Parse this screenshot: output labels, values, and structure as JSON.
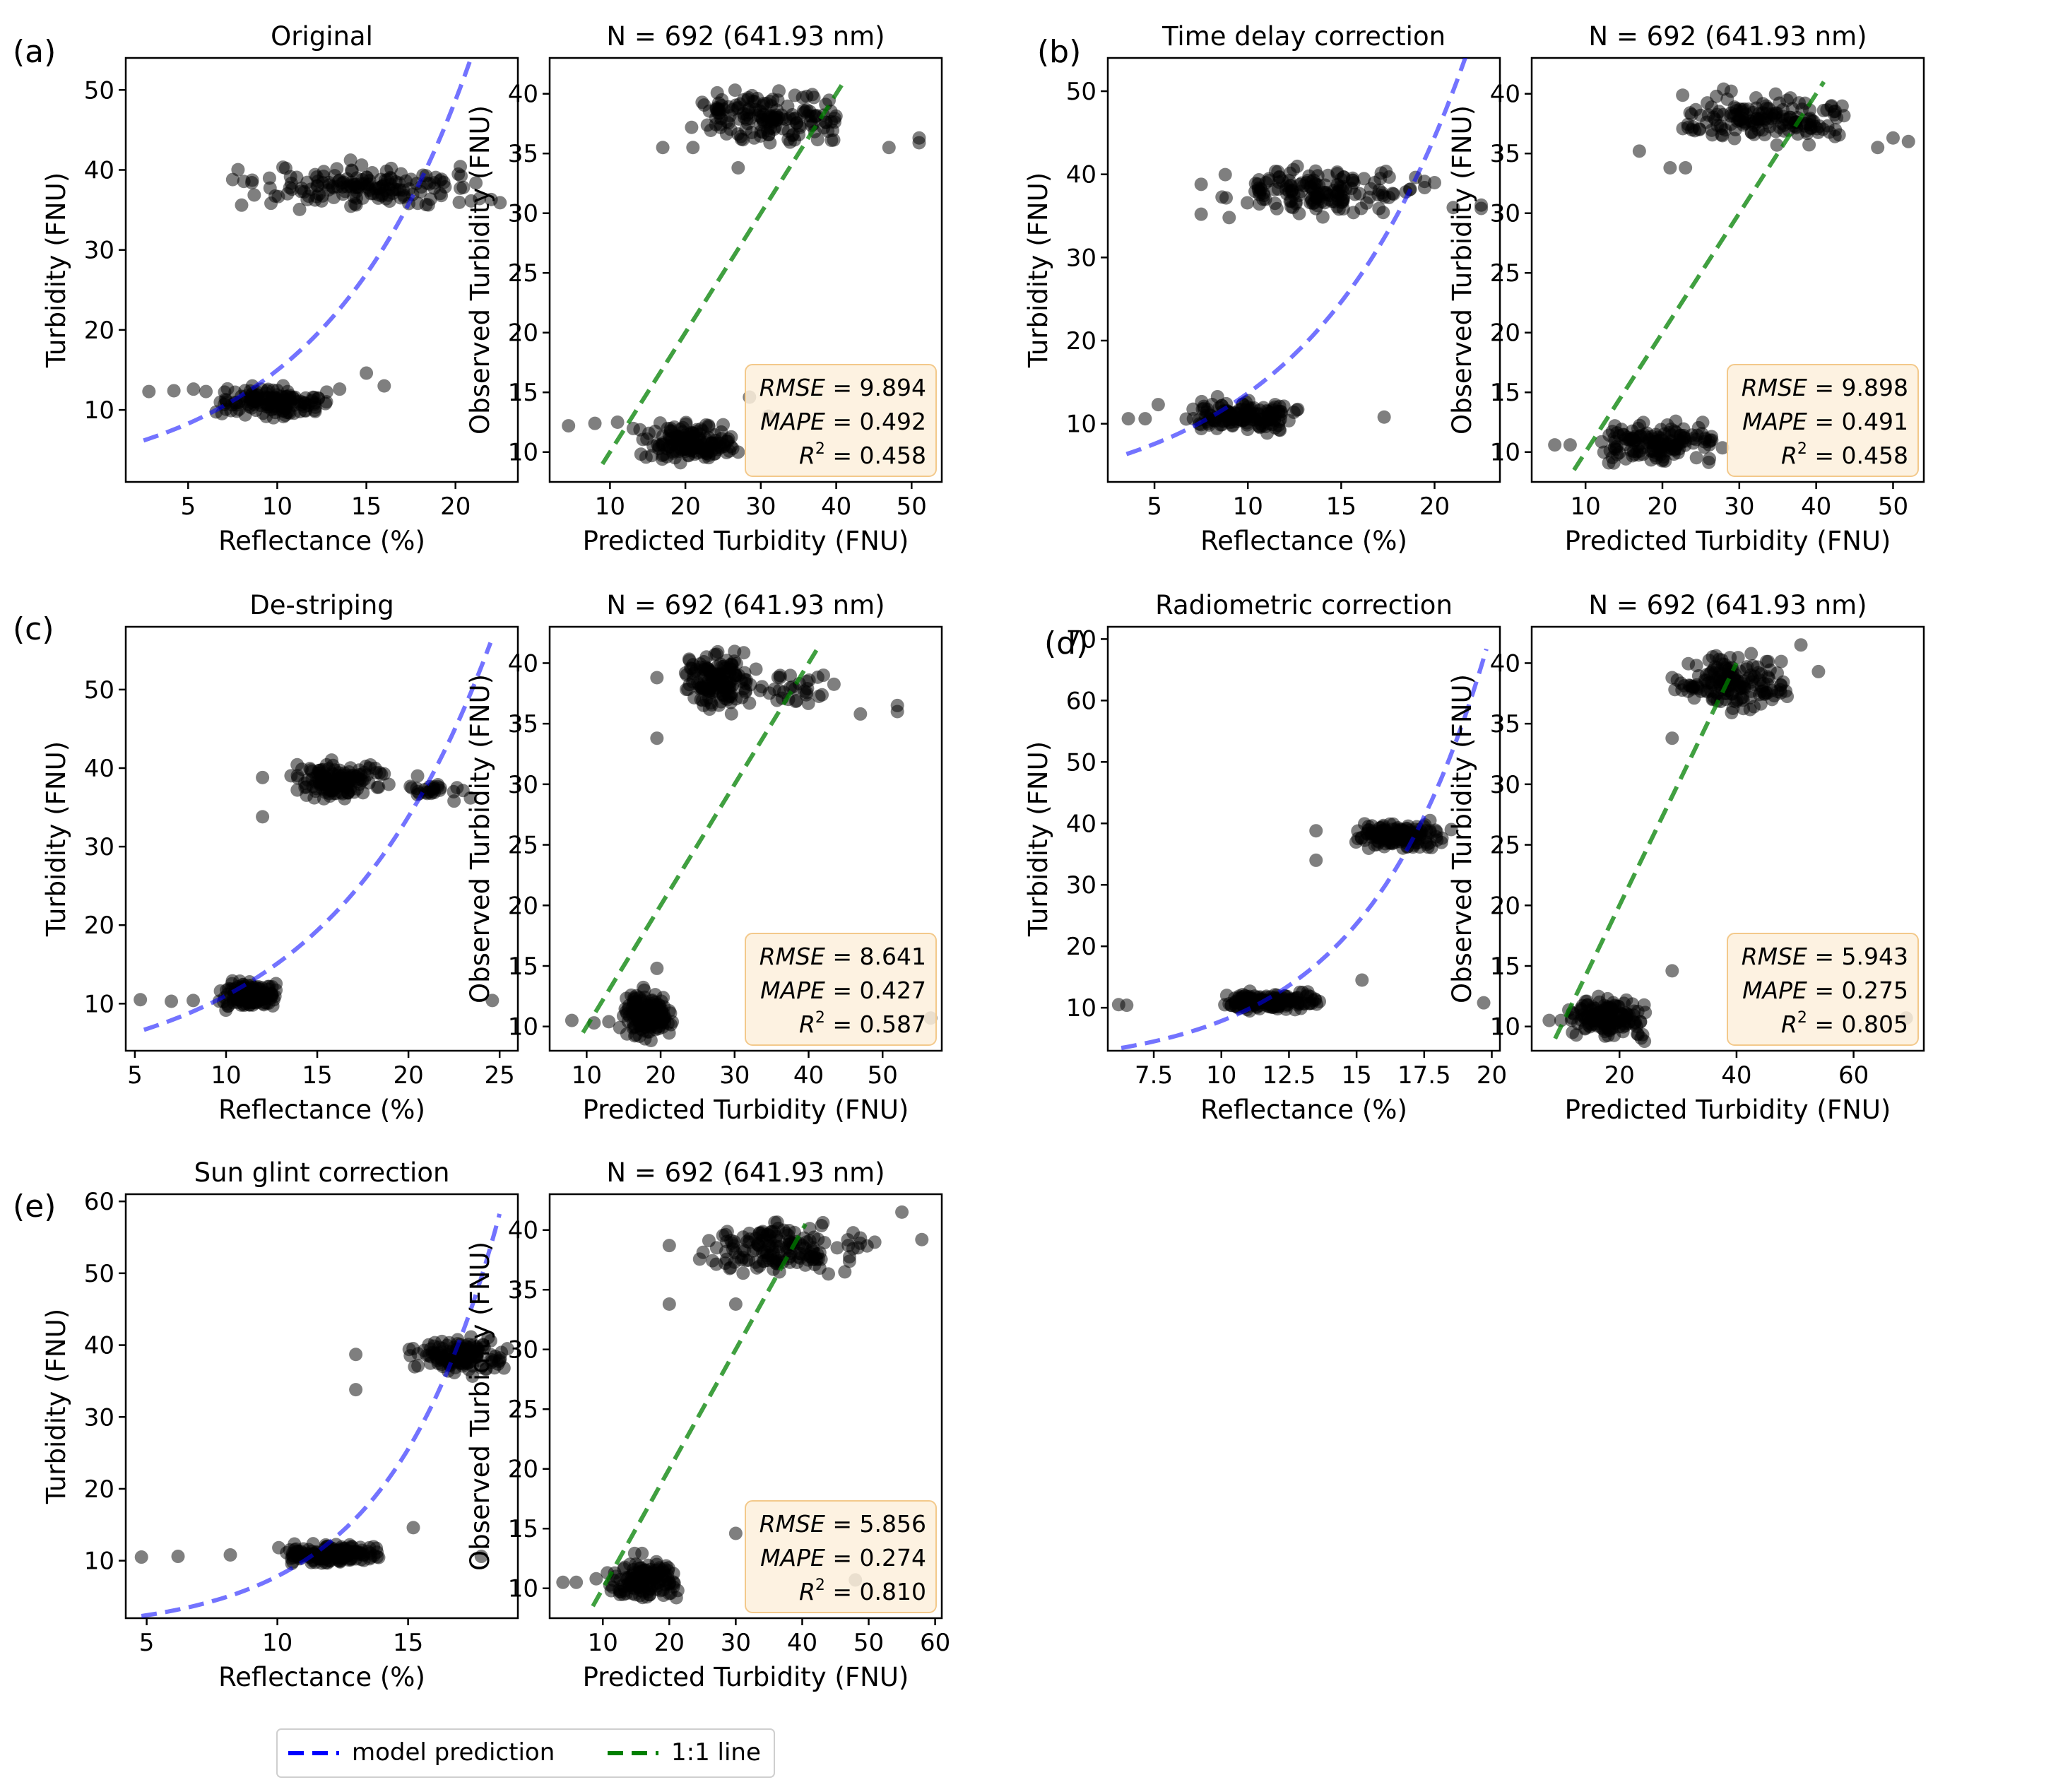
{
  "legend": {
    "model_label": "model prediction",
    "model_color": "#0000ff",
    "one_to_one_label": "1:1 line",
    "one_to_one_color": "#008000"
  },
  "chart_data": [
    {
      "panel": "(a)",
      "kind": "reflectance",
      "type": "scatter",
      "title": "Original",
      "xlabel": "Reflectance (%)",
      "ylabel": "Turbidity (FNU)",
      "xlim": [
        1.5,
        23.5
      ],
      "ylim": [
        1,
        54
      ],
      "xticks": [
        5,
        10,
        15,
        20
      ],
      "yticks": [
        10,
        20,
        30,
        40,
        50
      ],
      "curve": {
        "x0": 2.5,
        "x1": 22.5,
        "a": 4.6,
        "b": 0.118
      },
      "clusters": [
        {
          "xmin": 7.0,
          "xmax": 22.0,
          "ymin": 34.5,
          "ymax": 41.5,
          "n": 160
        },
        {
          "xmin": 6.5,
          "xmax": 13.0,
          "ymin": 8.5,
          "ymax": 13.5,
          "n": 150
        }
      ],
      "points": [
        [
          2.8,
          12.3
        ],
        [
          4.2,
          12.4
        ],
        [
          5.3,
          12.6
        ],
        [
          6.0,
          12.3
        ],
        [
          13.5,
          12.6
        ],
        [
          15.0,
          14.6
        ],
        [
          16.0,
          13.0
        ],
        [
          22.5,
          35.9
        ],
        [
          22.0,
          36.3
        ],
        [
          7.5,
          38.8
        ],
        [
          8.0,
          35.6
        ],
        [
          16.3,
          36.1
        ]
      ]
    },
    {
      "panel": "",
      "kind": "predicted",
      "type": "scatter",
      "title": "N = 692 (641.93 nm)",
      "xlabel": "Predicted Turbidity (FNU)",
      "ylabel": "Observed Turbidity (FNU)",
      "xlim": [
        2,
        54
      ],
      "ylim": [
        7.5,
        43
      ],
      "xticks": [
        10,
        20,
        30,
        40,
        50
      ],
      "yticks": [
        10,
        15,
        20,
        25,
        30,
        35,
        40
      ],
      "line": {
        "x0": 9.0,
        "x1": 41.0
      },
      "stats": {
        "rmse": "9.894",
        "mape": "0.492",
        "r2": "0.458"
      },
      "clusters": [
        {
          "xmin": 20.0,
          "xmax": 42.0,
          "ymin": 35.0,
          "ymax": 41.0,
          "n": 160
        },
        {
          "xmin": 12.0,
          "xmax": 28.0,
          "ymin": 8.5,
          "ymax": 13.0,
          "n": 150
        }
      ],
      "points": [
        [
          4.5,
          12.2
        ],
        [
          8.0,
          12.4
        ],
        [
          11.0,
          12.5
        ],
        [
          28.5,
          14.6
        ],
        [
          31.0,
          13.0
        ],
        [
          51.0,
          35.9
        ],
        [
          51.0,
          36.3
        ],
        [
          47.0,
          35.5
        ],
        [
          17.0,
          35.5
        ],
        [
          21.0,
          35.5
        ],
        [
          27.0,
          33.8
        ]
      ]
    },
    {
      "panel": "(b)",
      "kind": "reflectance",
      "type": "scatter",
      "title": "Time delay correction",
      "xlabel": "Reflectance (%)",
      "ylabel": "Turbidity (FNU)",
      "xlim": [
        2.5,
        23.5
      ],
      "ylim": [
        3,
        54
      ],
      "xticks": [
        5,
        10,
        15,
        20
      ],
      "yticks": [
        10,
        20,
        30,
        40,
        50
      ],
      "curve": {
        "x0": 3.5,
        "x1": 22.5,
        "a": 4.2,
        "b": 0.118
      },
      "clusters": [
        {
          "xmin": 8.0,
          "xmax": 20.0,
          "ymin": 34.5,
          "ymax": 41.5,
          "n": 160
        },
        {
          "xmin": 6.5,
          "xmax": 13.0,
          "ymin": 8.5,
          "ymax": 13.5,
          "n": 150
        }
      ],
      "points": [
        [
          3.6,
          10.6
        ],
        [
          4.5,
          10.6
        ],
        [
          5.2,
          12.3
        ],
        [
          17.3,
          10.8
        ],
        [
          22.5,
          35.9
        ],
        [
          22.5,
          36.3
        ],
        [
          21.0,
          36.0
        ],
        [
          20.0,
          39.0
        ],
        [
          7.5,
          38.8
        ],
        [
          7.5,
          35.2
        ],
        [
          9.0,
          34.8
        ]
      ]
    },
    {
      "panel": "",
      "kind": "predicted",
      "type": "scatter",
      "title": "N = 692 (641.93 nm)",
      "xlabel": "Predicted Turbidity (FNU)",
      "ylabel": "Observed Turbidity (FNU)",
      "xlim": [
        3,
        54
      ],
      "ylim": [
        7.5,
        43
      ],
      "xticks": [
        10,
        20,
        30,
        40,
        50
      ],
      "yticks": [
        10,
        15,
        20,
        25,
        30,
        35,
        40
      ],
      "line": {
        "x0": 8.5,
        "x1": 41.0
      },
      "stats": {
        "rmse": "9.898",
        "mape": "0.491",
        "r2": "0.458"
      },
      "clusters": [
        {
          "xmin": 20.0,
          "xmax": 45.0,
          "ymin": 35.0,
          "ymax": 41.0,
          "n": 160
        },
        {
          "xmin": 11.0,
          "xmax": 28.0,
          "ymin": 8.5,
          "ymax": 13.0,
          "n": 150
        }
      ],
      "points": [
        [
          6.0,
          10.6
        ],
        [
          8.0,
          10.6
        ],
        [
          52.0,
          36.0
        ],
        [
          50.0,
          36.3
        ],
        [
          48.0,
          35.5
        ],
        [
          42.0,
          39.0
        ],
        [
          17.0,
          35.2
        ],
        [
          21.0,
          33.8
        ],
        [
          23.0,
          33.8
        ]
      ]
    },
    {
      "panel": "(c)",
      "kind": "reflectance",
      "type": "scatter",
      "title": "De-striping",
      "xlabel": "Reflectance (%)",
      "ylabel": "Turbidity (FNU)",
      "xlim": [
        4.5,
        26
      ],
      "ylim": [
        4,
        58
      ],
      "xticks": [
        5,
        10,
        15,
        20,
        25
      ],
      "yticks": [
        10,
        20,
        30,
        40,
        50
      ],
      "curve": {
        "x0": 5.5,
        "x1": 24.5,
        "a": 3.6,
        "b": 0.112
      },
      "clusters": [
        {
          "xmin": 13.5,
          "xmax": 19.0,
          "ymin": 35.5,
          "ymax": 41.5,
          "n": 150
        },
        {
          "xmin": 19.0,
          "xmax": 23.5,
          "ymin": 36.0,
          "ymax": 38.5,
          "n": 25
        },
        {
          "xmin": 9.5,
          "xmax": 13.0,
          "ymin": 8.5,
          "ymax": 13.5,
          "n": 150
        }
      ],
      "points": [
        [
          5.3,
          10.5
        ],
        [
          7.0,
          10.3
        ],
        [
          8.2,
          10.4
        ],
        [
          24.6,
          10.4
        ],
        [
          12.0,
          38.8
        ],
        [
          12.0,
          33.8
        ],
        [
          22.5,
          35.8
        ],
        [
          23.4,
          36.2
        ],
        [
          20.5,
          39.0
        ]
      ]
    },
    {
      "panel": "",
      "kind": "predicted",
      "type": "scatter",
      "title": "N = 692 (641.93 nm)",
      "xlabel": "Predicted Turbidity (FNU)",
      "ylabel": "Observed Turbidity (FNU)",
      "xlim": [
        5,
        58
      ],
      "ylim": [
        8,
        43
      ],
      "xticks": [
        10,
        20,
        30,
        40,
        50
      ],
      "yticks": [
        10,
        15,
        20,
        25,
        30,
        35,
        40
      ],
      "line": {
        "x0": 9.5,
        "x1": 41.5
      },
      "stats": {
        "rmse": "8.641",
        "mape": "0.427",
        "r2": "0.587"
      },
      "clusters": [
        {
          "xmin": 23.0,
          "xmax": 33.0,
          "ymin": 35.5,
          "ymax": 41.5,
          "n": 150
        },
        {
          "xmin": 32.0,
          "xmax": 45.0,
          "ymin": 36.0,
          "ymax": 39.5,
          "n": 30
        },
        {
          "xmin": 14.0,
          "xmax": 22.0,
          "ymin": 8.5,
          "ymax": 13.5,
          "n": 150
        }
      ],
      "points": [
        [
          8.0,
          10.5
        ],
        [
          11.0,
          10.3
        ],
        [
          13.0,
          10.4
        ],
        [
          56.5,
          10.7
        ],
        [
          19.5,
          38.8
        ],
        [
          19.5,
          33.8
        ],
        [
          52.0,
          36.0
        ],
        [
          52.0,
          36.5
        ],
        [
          47.0,
          35.8
        ],
        [
          42.0,
          39.0
        ],
        [
          19.5,
          14.8
        ]
      ]
    },
    {
      "panel": "(d)",
      "kind": "reflectance",
      "type": "scatter",
      "title": "Radiometric correction",
      "xlabel": "Reflectance (%)",
      "ylabel": "Turbidity (FNU)",
      "xlim": [
        5.8,
        20.3
      ],
      "ylim": [
        3,
        72
      ],
      "xticks": [
        7.5,
        10.0,
        12.5,
        15.0,
        17.5,
        20.0
      ],
      "yticks": [
        10,
        20,
        30,
        40,
        50,
        60,
        70
      ],
      "curve": {
        "x0": 6.3,
        "x1": 19.8,
        "a": 0.86,
        "b": 0.221
      },
      "clusters": [
        {
          "xmin": 14.8,
          "xmax": 18.5,
          "ymin": 35.0,
          "ymax": 41.0,
          "n": 150
        },
        {
          "xmin": 9.8,
          "xmax": 13.8,
          "ymin": 9.0,
          "ymax": 13.0,
          "n": 150
        }
      ],
      "points": [
        [
          6.2,
          10.5
        ],
        [
          6.5,
          10.4
        ],
        [
          19.7,
          10.8
        ],
        [
          15.2,
          14.5
        ],
        [
          13.5,
          38.8
        ],
        [
          13.5,
          34.0
        ],
        [
          18.5,
          39.0
        ]
      ]
    },
    {
      "panel": "",
      "kind": "predicted",
      "type": "scatter",
      "title": "N = 692 (641.93 nm)",
      "xlabel": "Predicted Turbidity (FNU)",
      "ylabel": "Observed Turbidity (FNU)",
      "xlim": [
        5,
        72
      ],
      "ylim": [
        8,
        43
      ],
      "xticks": [
        20,
        40,
        60
      ],
      "yticks": [
        10,
        15,
        20,
        25,
        30,
        35,
        40
      ],
      "line": {
        "x0": 9.0,
        "x1": 40.0
      },
      "stats": {
        "rmse": "5.943",
        "mape": "0.275",
        "r2": "0.805"
      },
      "clusters": [
        {
          "xmin": 28.0,
          "xmax": 50.0,
          "ymin": 35.5,
          "ymax": 41.5,
          "n": 160
        },
        {
          "xmin": 11.0,
          "xmax": 25.0,
          "ymin": 8.5,
          "ymax": 13.0,
          "n": 150
        }
      ],
      "points": [
        [
          8.0,
          10.5
        ],
        [
          10.0,
          10.5
        ],
        [
          69.0,
          10.7
        ],
        [
          29.0,
          14.6
        ],
        [
          29.0,
          38.8
        ],
        [
          29.0,
          33.8
        ],
        [
          54.0,
          39.3
        ],
        [
          51.0,
          41.5
        ]
      ]
    },
    {
      "panel": "(e)",
      "kind": "reflectance",
      "type": "scatter",
      "title": "Sun glint correction",
      "xlabel": "Reflectance (%)",
      "ylabel": "Turbidity (FNU)",
      "xlim": [
        4.2,
        19.2
      ],
      "ylim": [
        2,
        61
      ],
      "xticks": [
        5,
        10,
        15
      ],
      "yticks": [
        10,
        20,
        30,
        40,
        50,
        60
      ],
      "curve": {
        "x0": 4.8,
        "x1": 18.5,
        "a": 0.74,
        "b": 0.236
      },
      "clusters": [
        {
          "xmin": 15.0,
          "xmax": 18.8,
          "ymin": 35.5,
          "ymax": 41.5,
          "n": 150
        },
        {
          "xmin": 9.7,
          "xmax": 14.0,
          "ymin": 9.0,
          "ymax": 13.0,
          "n": 150
        }
      ],
      "points": [
        [
          4.8,
          10.5
        ],
        [
          6.2,
          10.6
        ],
        [
          8.2,
          10.8
        ],
        [
          17.8,
          10.6
        ],
        [
          15.2,
          14.6
        ],
        [
          13.0,
          38.7
        ],
        [
          13.0,
          33.8
        ],
        [
          18.8,
          39.5
        ]
      ]
    },
    {
      "panel": "",
      "kind": "predicted",
      "type": "scatter",
      "title": "N = 692 (641.93 nm)",
      "xlabel": "Predicted Turbidity (FNU)",
      "ylabel": "Observed Turbidity (FNU)",
      "xlim": [
        2,
        61
      ],
      "ylim": [
        7.5,
        43
      ],
      "xticks": [
        10,
        20,
        30,
        40,
        50,
        60
      ],
      "yticks": [
        10,
        15,
        20,
        25,
        30,
        35,
        40
      ],
      "line": {
        "x0": 8.5,
        "x1": 40.5
      },
      "stats": {
        "rmse": "5.856",
        "mape": "0.274",
        "r2": "0.810"
      },
      "clusters": [
        {
          "xmin": 22.0,
          "xmax": 52.0,
          "ymin": 35.5,
          "ymax": 41.5,
          "n": 160
        },
        {
          "xmin": 10.5,
          "xmax": 22.0,
          "ymin": 8.5,
          "ymax": 13.0,
          "n": 150
        }
      ],
      "points": [
        [
          4.0,
          10.5
        ],
        [
          6.0,
          10.5
        ],
        [
          9.0,
          10.8
        ],
        [
          30.0,
          14.6
        ],
        [
          20.0,
          38.7
        ],
        [
          20.0,
          33.8
        ],
        [
          30.0,
          33.8
        ],
        [
          58.0,
          39.2
        ],
        [
          55.0,
          41.5
        ],
        [
          48.0,
          10.7
        ]
      ]
    }
  ]
}
